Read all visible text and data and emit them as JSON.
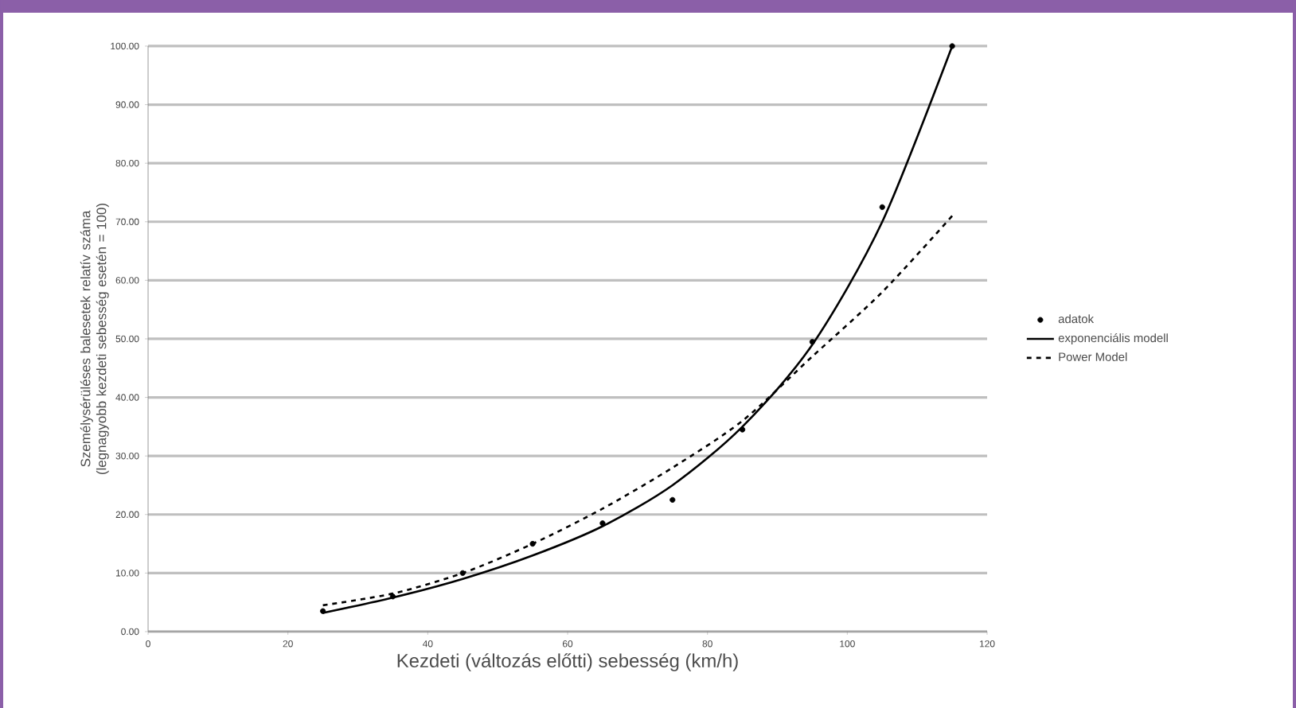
{
  "chart_data": {
    "type": "line",
    "xlabel": "Kezdeti (változás előtti) sebesség (km/h)",
    "ylabel": "Személysérüléses balesetek relatív száma (legnagyobb kezdeti sebesség esetén = 100)",
    "xlim": [
      0,
      120
    ],
    "xticks": [
      0,
      20,
      40,
      60,
      80,
      100,
      120
    ],
    "ylim": [
      0,
      100
    ],
    "yticks": [
      {
        "value": 0,
        "label": "0.00"
      },
      {
        "value": 10,
        "label": "10.00"
      },
      {
        "value": 20,
        "label": "20.00"
      },
      {
        "value": 30,
        "label": "30.00"
      },
      {
        "value": 40,
        "label": "40.00"
      },
      {
        "value": 50,
        "label": "50.00"
      },
      {
        "value": 60,
        "label": "60.00"
      },
      {
        "value": 70,
        "label": "70.00"
      },
      {
        "value": 80,
        "label": "80.00"
      },
      {
        "value": 90,
        "label": "90.00"
      },
      {
        "value": 100,
        "label": "100.00"
      }
    ],
    "grid": "y",
    "legend": "right",
    "series": [
      {
        "name": "adatok",
        "type": "scatter",
        "marker": "circle",
        "color": "#000000",
        "x": [
          25,
          35,
          45,
          55,
          65,
          75,
          85,
          95,
          105,
          115
        ],
        "values": [
          3.5,
          6,
          10,
          15,
          18.5,
          22.5,
          34.5,
          49.5,
          72.5,
          100
        ]
      },
      {
        "name": "exponenciális modell",
        "line_style": "solid",
        "color": "#000000",
        "x": [
          25,
          35,
          45,
          55,
          65,
          75,
          85,
          95,
          105,
          115
        ],
        "values": [
          3.2,
          5.8,
          9,
          13,
          18,
          25,
          35,
          49,
          70,
          100
        ]
      },
      {
        "name": "Power Model",
        "line_style": "dashed",
        "color": "#000000",
        "x": [
          25,
          35,
          45,
          55,
          65,
          75,
          85,
          95,
          105,
          115
        ],
        "values": [
          4.5,
          6.5,
          10,
          15,
          21,
          28,
          36,
          47,
          58,
          71
        ]
      }
    ]
  }
}
